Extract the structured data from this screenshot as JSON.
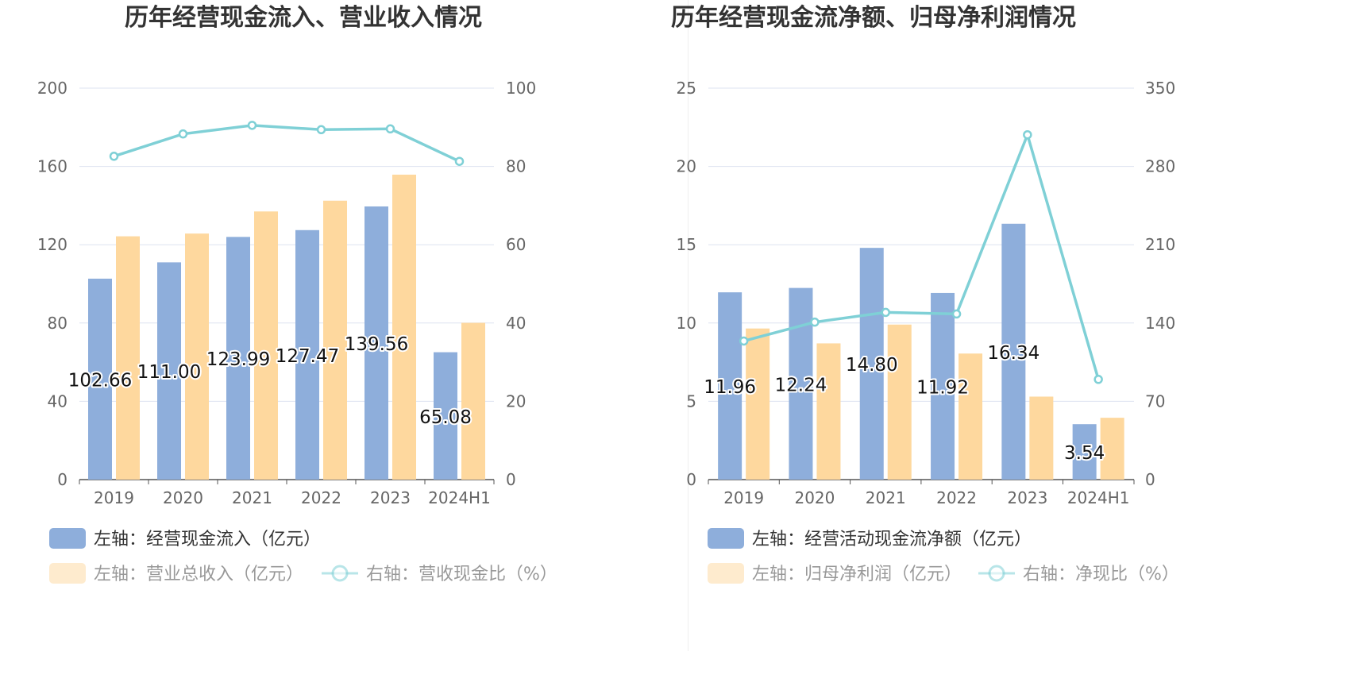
{
  "colors": {
    "bar_primary": "#8eaedb",
    "bar_secondary": "#fed89e",
    "line": "#7fd0d6",
    "axis_text": "#666666",
    "title": "#333333",
    "grid": "#dde3f0",
    "axis_line": "#555555",
    "label_text": "#111111"
  },
  "chart_data": [
    {
      "type": "bar",
      "title": "历年经营现金流入、营业收入情况",
      "categories": [
        "2019",
        "2020",
        "2021",
        "2022",
        "2023",
        "2024H1"
      ],
      "y_left": {
        "min": 0,
        "max": 200,
        "ticks": [
          "0",
          "40",
          "80",
          "120",
          "160",
          "200"
        ]
      },
      "y_right": {
        "min": 0,
        "max": 100,
        "ticks": [
          "0",
          "20",
          "40",
          "60",
          "80",
          "100"
        ]
      },
      "grid": true,
      "legend_position": "bottom",
      "series": [
        {
          "name": "左轴：经营现金流入（亿元）",
          "kind": "bar",
          "axis": "left",
          "values": [
            102.66,
            111.0,
            123.99,
            127.47,
            139.56,
            65.08
          ],
          "labels": [
            "102.66",
            "111.00",
            "123.99",
            "127.47",
            "139.56",
            "65.08"
          ],
          "color": "#8eaedb"
        },
        {
          "name": "左轴：营业总收入（亿元）",
          "kind": "bar",
          "axis": "left",
          "values": [
            124.3,
            125.7,
            137.0,
            142.5,
            155.8,
            80.1
          ],
          "color": "#fed89e"
        },
        {
          "name": "右轴：营收现金比（%）",
          "kind": "line",
          "axis": "right",
          "values": [
            82.6,
            88.3,
            90.5,
            89.4,
            89.6,
            81.3
          ],
          "color": "#7fd0d6"
        }
      ]
    },
    {
      "type": "bar",
      "title": "历年经营现金流净额、归母净利润情况",
      "categories": [
        "2019",
        "2020",
        "2021",
        "2022",
        "2023",
        "2024H1"
      ],
      "y_left": {
        "min": 0,
        "max": 25,
        "ticks": [
          "0",
          "5",
          "10",
          "15",
          "20",
          "25"
        ]
      },
      "y_right": {
        "min": 0,
        "max": 350,
        "ticks": [
          "0",
          "70",
          "140",
          "210",
          "280",
          "350"
        ]
      },
      "grid": true,
      "legend_position": "bottom",
      "series": [
        {
          "name": "左轴：经营活动现金流净额（亿元）",
          "kind": "bar",
          "axis": "left",
          "values": [
            11.96,
            12.24,
            14.8,
            11.92,
            16.34,
            3.54
          ],
          "labels": [
            "11.96",
            "12.24",
            "14.80",
            "11.92",
            "16.34",
            "3.54"
          ],
          "color": "#8eaedb"
        },
        {
          "name": "左轴：归母净利润（亿元）",
          "kind": "bar",
          "axis": "left",
          "values": [
            9.65,
            8.7,
            9.9,
            8.05,
            5.3,
            3.95
          ],
          "color": "#fed89e"
        },
        {
          "name": "右轴：净现比（%）",
          "kind": "line",
          "axis": "right",
          "values": [
            123.9,
            140.8,
            149.5,
            148.1,
            308.3,
            89.6
          ],
          "color": "#7fd0d6"
        }
      ]
    }
  ]
}
